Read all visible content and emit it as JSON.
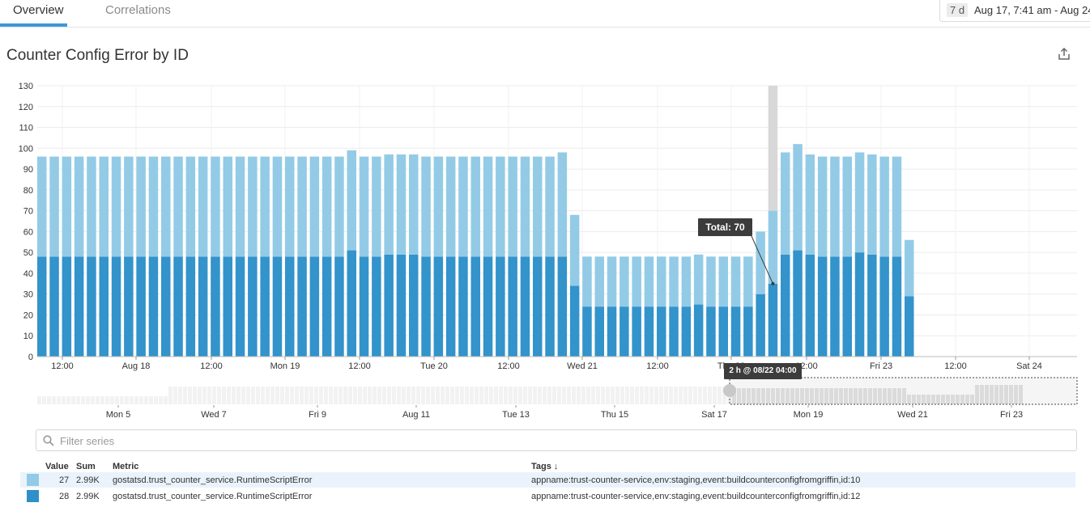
{
  "tabs": [
    {
      "label": "Overview",
      "active": true
    },
    {
      "label": "Correlations",
      "active": false
    }
  ],
  "time_range": {
    "chip": "7 d",
    "text": "Aug 17, 7:41 am - Aug 24"
  },
  "widget": {
    "title": "Counter Config Error by ID",
    "export_icon": "share-export-icon"
  },
  "tooltip": {
    "total": "Total: 70",
    "time": "2 h @ 08/22 04:00"
  },
  "filter": {
    "placeholder": "Filter series",
    "value": "",
    "icon": "search-icon"
  },
  "legend": {
    "headers": {
      "value": "Value",
      "sum": "Sum",
      "metric": "Metric",
      "tags": "Tags ↓"
    },
    "rows": [
      {
        "value": "27",
        "sum": "2.99K",
        "metric": "gostatsd.trust_counter_service.RuntimeScriptError",
        "tags": "appname:trust-counter-service,env:staging,event:buildcounterconfigfromgriffin,id:10",
        "color": "#93cbe6",
        "highlight": true
      },
      {
        "value": "28",
        "sum": "2.99K",
        "metric": "gostatsd.trust_counter_service.RuntimeScriptError",
        "tags": "appname:trust-counter-service,env:staging,event:buildcounterconfigfromgriffin,id:12",
        "color": "#2f8fc8",
        "highlight": false
      }
    ]
  },
  "colors": {
    "light": "#93cbe6",
    "dark": "#3393cb",
    "hover_gray": "#d8d8d8",
    "accent": "#3b9ad6"
  },
  "chart_data": {
    "type": "bar",
    "stacked": true,
    "ylim": [
      0,
      130
    ],
    "yticks": [
      0,
      10,
      20,
      30,
      40,
      50,
      60,
      70,
      80,
      90,
      100,
      110,
      120,
      130
    ],
    "grid": true,
    "x_tick_labels": [
      "12:00",
      "Aug 18",
      "12:00",
      "Mon 19",
      "12:00",
      "Tue 20",
      "12:00",
      "Wed 21",
      "12:00",
      "Thu 22",
      "12:00",
      "Fri 23",
      "12:00",
      "Sat 24"
    ],
    "series": [
      {
        "name": "id:12",
        "color": "#3393cb",
        "values": [
          48,
          48,
          48,
          48,
          48,
          48,
          48,
          48,
          48,
          48,
          48,
          48,
          48,
          48,
          48,
          48,
          48,
          48,
          48,
          48,
          48,
          48,
          48,
          48,
          48,
          51,
          48,
          48,
          49,
          49,
          49,
          48,
          48,
          48,
          48,
          48,
          48,
          48,
          48,
          48,
          48,
          48,
          48,
          34,
          24,
          24,
          24,
          24,
          24,
          24,
          24,
          24,
          24,
          25,
          24,
          24,
          24,
          24,
          30,
          35,
          49,
          51,
          49,
          48,
          48,
          48,
          50,
          49,
          48,
          48,
          29
        ]
      },
      {
        "name": "id:10",
        "color": "#93cbe6",
        "values": [
          48,
          48,
          48,
          48,
          48,
          48,
          48,
          48,
          48,
          48,
          48,
          48,
          48,
          48,
          48,
          48,
          48,
          48,
          48,
          48,
          48,
          48,
          48,
          48,
          48,
          48,
          48,
          48,
          48,
          48,
          48,
          48,
          48,
          48,
          48,
          48,
          48,
          48,
          48,
          48,
          48,
          48,
          50,
          34,
          24,
          24,
          24,
          24,
          24,
          24,
          24,
          24,
          24,
          24,
          24,
          24,
          24,
          24,
          30,
          35,
          49,
          51,
          48,
          48,
          48,
          48,
          48,
          48,
          48,
          48,
          27
        ]
      }
    ],
    "navigator_labels": [
      "Mon 5",
      "Wed 7",
      "Fri 9",
      "Aug 11",
      "Tue 13",
      "Thu 15",
      "Sat 17",
      "Mon 19",
      "Wed 21",
      "Fri 23"
    ]
  }
}
